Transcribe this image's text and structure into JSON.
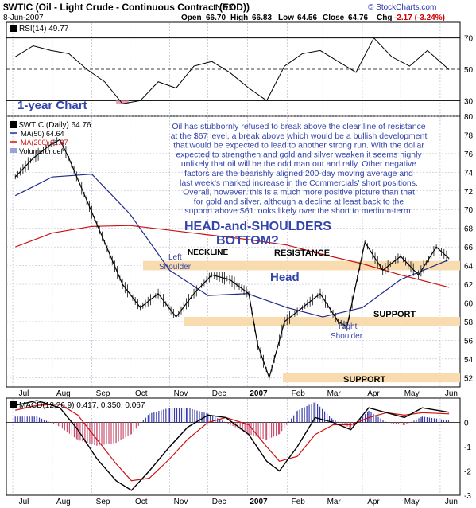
{
  "header": {
    "title": "$WTIC (Oil - Light Crude - Continuous Contract (EOD))",
    "exchange": "INDX",
    "date": "8-Jun-2007",
    "open_label": "Open",
    "open": "66.70",
    "high_label": "High",
    "high": "66.83",
    "low_label": "Low",
    "low": "64.56",
    "close_label": "Close",
    "close": "64.76",
    "chg_label": "Chg",
    "chg": "-2.17 (-3.24%)",
    "watermark": "© StockCharts.com"
  },
  "colors": {
    "price": "#000000",
    "ma50": "#1f2a8a",
    "ma200": "#cc1111",
    "band": "#f8dcb0",
    "rsi_fill_low": "#e8a0b0",
    "macd_hist_pos": "#3a3aaa",
    "macd_hist_neg": "#c85070",
    "annotation_blue": "#3344aa",
    "grid": "#b0b0c8"
  },
  "chart_data": [
    {
      "type": "line",
      "panel": "rsi",
      "label": "RSI(14) 49.77",
      "ylim": [
        20,
        80
      ],
      "y_ticks": [
        "70",
        "50",
        "30"
      ],
      "reference_lines": [
        70,
        50,
        30
      ],
      "series": [
        {
          "name": "RSI(14)",
          "x": [
            "Jul 3",
            "Jul 17",
            "Jul 31",
            "Aug 14",
            "Aug 28",
            "Sep 11",
            "Sep 25",
            "Oct 9",
            "Oct 23",
            "Nov 6",
            "Nov 20",
            "Dec 4",
            "Dec 18",
            "Jan 2",
            "Jan 16",
            "Jan 30",
            "Feb 13",
            "Feb 27",
            "Mar 13",
            "Mar 27",
            "Apr 10",
            "Apr 24",
            "May 8",
            "May 22",
            "Jun 8"
          ],
          "values": [
            58,
            65,
            62,
            60,
            50,
            42,
            28,
            30,
            42,
            38,
            52,
            55,
            48,
            38,
            30,
            52,
            60,
            62,
            55,
            48,
            70,
            58,
            52,
            62,
            49.77
          ]
        }
      ]
    },
    {
      "type": "line",
      "panel": "price",
      "label": "$WTIC (Daily) 64.76",
      "ylim": [
        51,
        80
      ],
      "y_ticks": [
        "80",
        "78",
        "76",
        "74",
        "72",
        "70",
        "68",
        "66",
        "64",
        "62",
        "60",
        "58",
        "56",
        "54",
        "52"
      ],
      "x_ticks": [
        "Jul",
        "Aug",
        "Sep",
        "Oct",
        "Nov",
        "Dec",
        "2007",
        "Feb",
        "Mar",
        "Apr",
        "May",
        "Jun"
      ],
      "series": [
        {
          "name": "$WTIC (Daily) 64.76",
          "x": [
            "Jul 3",
            "Jul 17",
            "Jul 31",
            "Aug 7",
            "Aug 14",
            "Aug 28",
            "Sep 11",
            "Sep 25",
            "Oct 9",
            "Oct 23",
            "Nov 6",
            "Nov 20",
            "Dec 4",
            "Dec 18",
            "Jan 2",
            "Jan 9",
            "Jan 18",
            "Jan 30",
            "Feb 13",
            "Feb 27",
            "Mar 13",
            "Mar 20",
            "Apr 3",
            "Apr 17",
            "May 1",
            "May 15",
            "May 29",
            "Jun 8"
          ],
          "values": [
            73.5,
            75.5,
            77.0,
            77.5,
            75.5,
            71.0,
            66.5,
            62.0,
            59.5,
            61.0,
            58.5,
            61.0,
            63.0,
            62.5,
            61.0,
            55.5,
            52.0,
            58.0,
            59.5,
            61.0,
            58.0,
            57.5,
            66.5,
            63.5,
            65.0,
            63.0,
            66.0,
            64.76
          ]
        },
        {
          "name": "MA(50) 64.64",
          "x": [
            "Jul 3",
            "Aug 1",
            "Sep 1",
            "Oct 1",
            "Nov 1",
            "Dec 1",
            "Jan 1",
            "Feb 1",
            "Mar 1",
            "Apr 1",
            "May 1",
            "Jun 8"
          ],
          "values": [
            71.5,
            73.5,
            73.8,
            69.5,
            63.5,
            60.8,
            61.0,
            59.5,
            58.5,
            59.5,
            62.5,
            64.64
          ]
        },
        {
          "name": "MA(200) 61.67",
          "x": [
            "Jul 3",
            "Aug 1",
            "Sep 1",
            "Oct 1",
            "Nov 1",
            "Dec 1",
            "Jan 1",
            "Feb 1",
            "Mar 1",
            "Apr 1",
            "May 1",
            "Jun 8"
          ],
          "values": [
            66.0,
            67.5,
            68.2,
            68.3,
            67.8,
            67.3,
            66.8,
            66.2,
            65.2,
            64.2,
            63.0,
            61.67
          ]
        }
      ],
      "bands": [
        {
          "label": "RESISTANCE",
          "from": 63.5,
          "to": 64.5
        },
        {
          "label": "SUPPORT",
          "from": 57.5,
          "to": 58.5
        },
        {
          "label": "SUPPORT",
          "from": 51.5,
          "to": 52.5
        }
      ]
    },
    {
      "type": "line",
      "panel": "macd",
      "label": "MACD(12,26,9) 0.417, 0.350, 0.067",
      "ylim": [
        -3,
        1
      ],
      "y_ticks": [
        "0",
        "-1",
        "-2",
        "-3"
      ],
      "series": [
        {
          "name": "MACD(12,26,9)",
          "x": [
            "Jul 3",
            "Jul 20",
            "Aug 7",
            "Aug 21",
            "Sep 5",
            "Sep 20",
            "Oct 2",
            "Oct 16",
            "Nov 1",
            "Nov 15",
            "Dec 1",
            "Dec 15",
            "Jan 2",
            "Jan 16",
            "Jan 26",
            "Feb 9",
            "Feb 23",
            "Mar 9",
            "Mar 23",
            "Apr 6",
            "Apr 20",
            "May 4",
            "May 18",
            "Jun 8"
          ],
          "values": [
            0.7,
            0.9,
            0.6,
            -0.3,
            -1.5,
            -2.4,
            -2.8,
            -2.0,
            -1.0,
            -0.2,
            0.3,
            0.2,
            -0.5,
            -1.6,
            -2.0,
            -1.0,
            0.2,
            0.0,
            -0.3,
            0.6,
            0.4,
            0.2,
            0.6,
            0.417
          ]
        },
        {
          "name": "Signal",
          "x": [
            "Jul 3",
            "Jul 20",
            "Aug 7",
            "Aug 21",
            "Sep 5",
            "Sep 20",
            "Oct 2",
            "Oct 16",
            "Nov 1",
            "Nov 15",
            "Dec 1",
            "Dec 15",
            "Jan 2",
            "Jan 16",
            "Jan 26",
            "Feb 9",
            "Feb 23",
            "Mar 9",
            "Mar 23",
            "Apr 6",
            "Apr 20",
            "May 4",
            "May 18",
            "Jun 8"
          ],
          "values": [
            0.5,
            0.7,
            0.75,
            0.3,
            -0.7,
            -1.7,
            -2.4,
            -2.3,
            -1.5,
            -0.7,
            0.0,
            0.2,
            -0.1,
            -1.0,
            -1.6,
            -1.4,
            -0.5,
            -0.1,
            -0.1,
            0.2,
            0.4,
            0.3,
            0.4,
            0.35
          ]
        }
      ]
    }
  ],
  "annotations": {
    "rsi_note": "1-year Chart",
    "commentary": [
      "Oil has stubbornly refused to break above the clear line of resistance",
      "at the $67 level, a break above which would be a bullish development",
      "that would be expected to lead to another strong run. With the dollar",
      "expected to strengthen and gold and silver weaken it seems highly",
      "unlikely that oil will be the odd man out and rally. Other negative",
      "factors are the bearishly aligned 200-day moving average and",
      "last week's marked increase in the Commercials' short positions.",
      "Overall, however, this is a much more positive picture than that",
      "for gold and silver, although a decline at least back to the",
      "support above $61 looks likely over the short to medium-term."
    ],
    "pattern_line1": "HEAD-and-SHOULDERS",
    "pattern_line2": "BOTTOM?",
    "neckline": "NECKLINE",
    "resistance": "RESISTANCE",
    "left_shoulder_1": "Left",
    "left_shoulder_2": "Shoulder",
    "head": "Head",
    "right_shoulder_1": "Right",
    "right_shoulder_2": "Shoulder",
    "support_upper": "SUPPORT",
    "support_lower": "SUPPORT",
    "volume_legend": "Volume undef"
  }
}
